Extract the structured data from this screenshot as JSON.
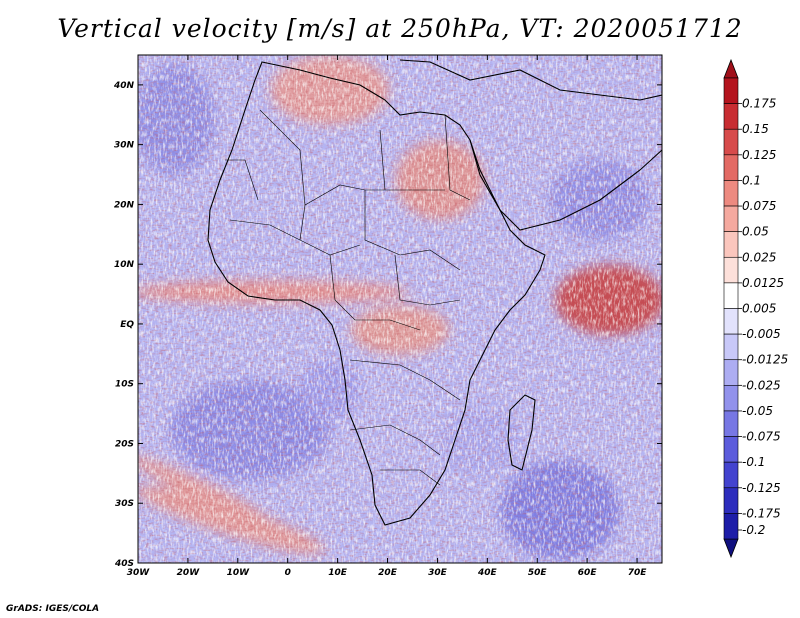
{
  "title": "Vertical velocity [m/s] at 250hPa, VT: 2020051712",
  "credit": "GrADS: IGES/COLA",
  "map": {
    "lon_range": [
      -30,
      75
    ],
    "lat_range": [
      -40,
      45
    ],
    "lon_ticks": [
      {
        "lon": -30,
        "label": "30W"
      },
      {
        "lon": -20,
        "label": "20W"
      },
      {
        "lon": -10,
        "label": "10W"
      },
      {
        "lon": 0,
        "label": "0"
      },
      {
        "lon": 10,
        "label": "10E"
      },
      {
        "lon": 20,
        "label": "20E"
      },
      {
        "lon": 30,
        "label": "30E"
      },
      {
        "lon": 40,
        "label": "40E"
      },
      {
        "lon": 50,
        "label": "50E"
      },
      {
        "lon": 60,
        "label": "60E"
      },
      {
        "lon": 70,
        "label": "70E"
      }
    ],
    "lat_ticks": [
      {
        "lat": 40,
        "label": "40N"
      },
      {
        "lat": 30,
        "label": "30N"
      },
      {
        "lat": 20,
        "label": "20N"
      },
      {
        "lat": 10,
        "label": "10N"
      },
      {
        "lat": 0,
        "label": "EQ"
      },
      {
        "lat": -10,
        "label": "10S"
      },
      {
        "lat": -20,
        "label": "20S"
      },
      {
        "lat": -30,
        "label": "30S"
      },
      {
        "lat": -40,
        "label": "40S"
      }
    ]
  },
  "colorbar": {
    "levels": [
      {
        "label": "0.175",
        "color": "#b4141e"
      },
      {
        "label": "0.15",
        "color": "#c82d32"
      },
      {
        "label": "0.125",
        "color": "#d74b4b"
      },
      {
        "label": "0.1",
        "color": "#e36a64"
      },
      {
        "label": "0.075",
        "color": "#ed8a80"
      },
      {
        "label": "0.05",
        "color": "#f5a99f"
      },
      {
        "label": "0.025",
        "color": "#fbc6bd"
      },
      {
        "label": "0.0125",
        "color": "#fde0da"
      },
      {
        "label": "0.005",
        "color": "#ffffff"
      },
      {
        "label": "-0.005",
        "color": "#e2e2fc"
      },
      {
        "label": "-0.0125",
        "color": "#c8c8f8"
      },
      {
        "label": "-0.025",
        "color": "#adadf2"
      },
      {
        "label": "-0.05",
        "color": "#9292ec"
      },
      {
        "label": "-0.075",
        "color": "#7777e4"
      },
      {
        "label": "-0.1",
        "color": "#5c5cdc"
      },
      {
        "label": "-0.125",
        "color": "#4343cf"
      },
      {
        "label": "-0.175",
        "color": "#2d2dbd"
      },
      {
        "label": "-0.2",
        "color": "#1d1da8"
      }
    ],
    "top_cap_color": "#a0101a",
    "bottom_cap_color": "#10107f"
  }
}
